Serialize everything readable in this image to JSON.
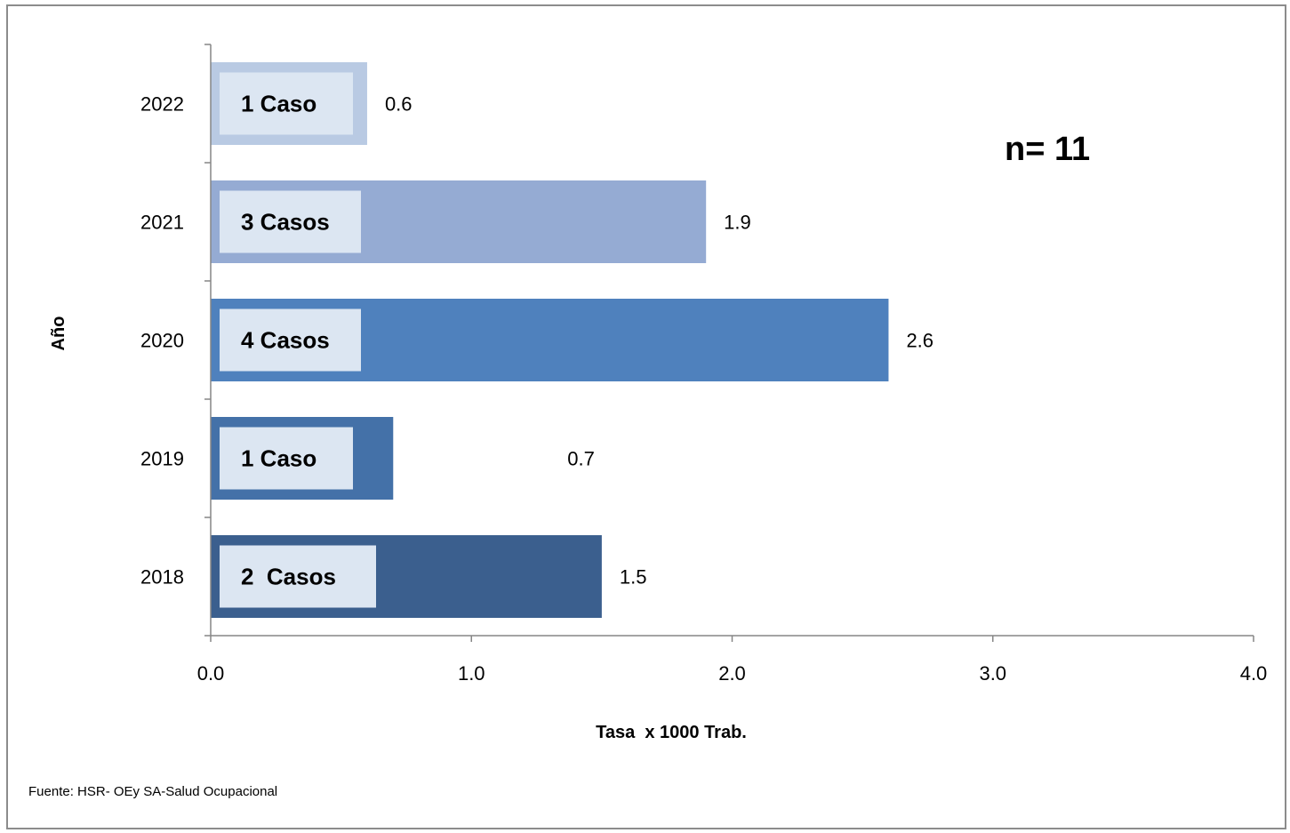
{
  "chart_data": {
    "type": "bar",
    "orientation": "horizontal",
    "categories": [
      "2022",
      "2021",
      "2020",
      "2019",
      "2018"
    ],
    "values": [
      0.6,
      1.9,
      2.6,
      0.7,
      1.5
    ],
    "value_labels": [
      "0.6",
      "1.9",
      "2.6",
      "0.7",
      "1.5"
    ],
    "bar_labels": [
      "1 Caso",
      "3 Casos",
      "4 Casos",
      "1 Caso",
      "2  Casos"
    ],
    "bar_colors": [
      "#B9CAE3",
      "#95ABD3",
      "#4F81BD",
      "#4471A8",
      "#3B5F8E"
    ],
    "inner_box_color": "#DCE6F2",
    "xlabel": "Tasa  x 1000 Trab.",
    "ylabel": "Año",
    "xlim": [
      0,
      4
    ],
    "xticks": [
      "0.0",
      "1.0",
      "2.0",
      "3.0",
      "4.0"
    ],
    "grid": false,
    "annotation": "n= 11"
  },
  "source": "Fuente: HSR- OEy SA-Salud Ocupacional"
}
